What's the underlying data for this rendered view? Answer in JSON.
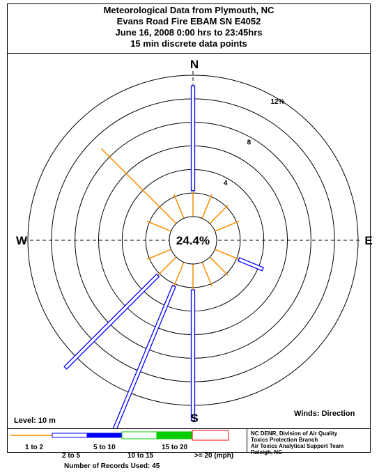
{
  "title_lines": [
    "Meteorological Data from Plymouth, NC",
    "Evans Road Fire EBAM SN E4052",
    "June 16, 2008 0:00 hrs to 23:45hrs",
    "15 min discrete data points"
  ],
  "compass": {
    "north": "N",
    "south": "S",
    "east": "E",
    "west": "W"
  },
  "level_label": "Level: 10 m",
  "winds_label": "Winds: Direction",
  "legend": {
    "labels": [
      "1 to 2",
      "2 to 5",
      "5 to 10",
      "10 to 15",
      "15 to 20",
      ">= 20 (mph)"
    ],
    "records_label": "Number of Records Used: 45"
  },
  "credits": [
    "NC DENR, Division of Air Quality",
    "Toxics Protection Branch",
    "Air Toxics Analytical Support Team",
    "Raleigh, NC"
  ],
  "colors": {
    "speed_1_2": "#ff8c00",
    "speed_2_5": "#0000ff",
    "speed_5_10": "#0000ff",
    "speed_10_15": "#00cc00",
    "speed_15_20": "#00cc00",
    "speed_20_plus": "#ff0000"
  },
  "chart_data": {
    "type": "wind_rose",
    "center_label": "24.4%",
    "calm_percent": 24.4,
    "ring_labels": [
      {
        "value": 4,
        "text": "4"
      },
      {
        "value": 8,
        "text": "8"
      },
      {
        "value": 12,
        "text": "12%"
      }
    ],
    "ring_values": [
      2,
      4,
      6,
      8,
      10,
      12
    ],
    "max_percent": 12,
    "directions": [
      "N",
      "NNE",
      "NE",
      "ENE",
      "E",
      "ESE",
      "SE",
      "SSE",
      "S",
      "SSW",
      "SW",
      "WSW",
      "W",
      "WNW",
      "NW",
      "NNW"
    ],
    "direction_degrees": [
      0,
      22.5,
      45,
      67.5,
      90,
      112.5,
      135,
      157.5,
      180,
      202.5,
      225,
      247.5,
      270,
      292.5,
      315,
      337.5
    ],
    "series": [
      {
        "name": "1 to 2",
        "values": [
          2.2,
          2.2,
          2.2,
          2.2,
          0,
          2.2,
          2.2,
          2.2,
          2.2,
          2.2,
          2.2,
          2.2,
          0,
          2.2,
          9.0,
          2.2
        ]
      },
      {
        "name": "2 to 5",
        "values": [
          8.9,
          0,
          0,
          0,
          0,
          2.2,
          0,
          0,
          11.1,
          13.3,
          11.1,
          0,
          0,
          0,
          0,
          0
        ]
      }
    ]
  }
}
